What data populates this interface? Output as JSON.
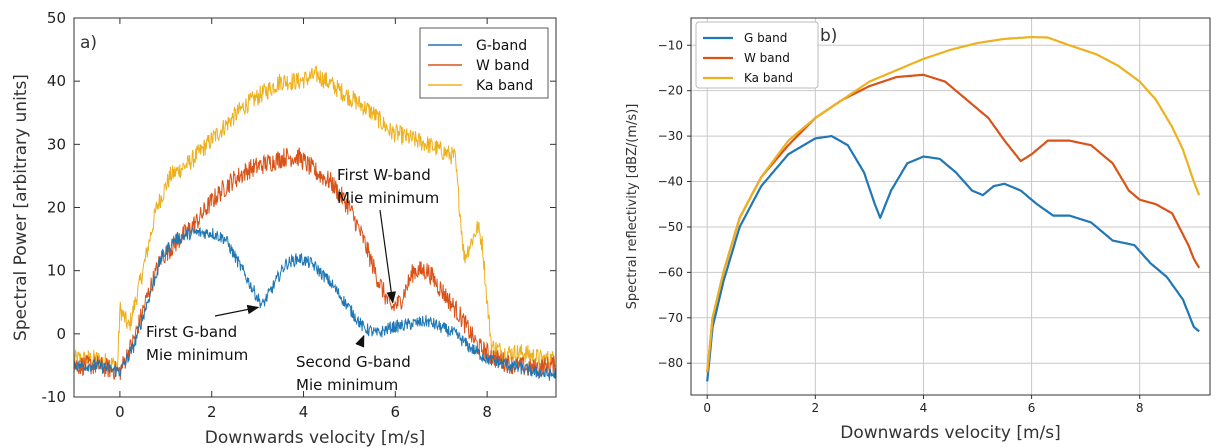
{
  "chart_data": [
    {
      "type": "line",
      "panel_label": "a)",
      "xlabel": "Downwards velocity [m/s]",
      "ylabel": "Spectral Power [arbitrary units]",
      "xlim": [
        -1,
        9.5
      ],
      "ylim": [
        -10,
        50
      ],
      "xticks": [
        "0",
        "2",
        "4",
        "6",
        "8"
      ],
      "yticks": [
        "-10",
        "0",
        "10",
        "20",
        "30",
        "40",
        "50"
      ],
      "grid": false,
      "legend_position": "top-right",
      "series": [
        {
          "name": "G-band",
          "color": "#1f77b4",
          "points": [
            [
              -1,
              -5
            ],
            [
              -0.5,
              -5
            ],
            [
              0,
              -6
            ],
            [
              0.3,
              -2
            ],
            [
              0.6,
              5
            ],
            [
              0.9,
              12
            ],
            [
              1.2,
              15
            ],
            [
              1.6,
              16
            ],
            [
              2.0,
              16
            ],
            [
              2.3,
              15
            ],
            [
              2.6,
              11
            ],
            [
              2.9,
              7
            ],
            [
              3.1,
              4.5
            ],
            [
              3.3,
              7
            ],
            [
              3.6,
              11
            ],
            [
              3.9,
              12
            ],
            [
              4.2,
              11
            ],
            [
              4.6,
              8
            ],
            [
              5.0,
              4
            ],
            [
              5.3,
              1
            ],
            [
              5.6,
              0
            ],
            [
              5.9,
              1
            ],
            [
              6.3,
              1.5
            ],
            [
              6.7,
              2
            ],
            [
              7.0,
              1
            ],
            [
              7.3,
              0
            ],
            [
              7.6,
              -2
            ],
            [
              8.0,
              -4
            ],
            [
              8.5,
              -5
            ],
            [
              9.0,
              -6
            ],
            [
              9.4,
              -6.5
            ]
          ]
        },
        {
          "name": "W band",
          "color": "#d95319",
          "points": [
            [
              -1,
              -5
            ],
            [
              -0.5,
              -5
            ],
            [
              0,
              -6
            ],
            [
              0.3,
              -1
            ],
            [
              0.6,
              6
            ],
            [
              0.9,
              12
            ],
            [
              1.3,
              15
            ],
            [
              1.7,
              18
            ],
            [
              2.0,
              21
            ],
            [
              2.4,
              24
            ],
            [
              2.8,
              26
            ],
            [
              3.2,
              27
            ],
            [
              3.6,
              28
            ],
            [
              3.9,
              28
            ],
            [
              4.2,
              26
            ],
            [
              4.6,
              24
            ],
            [
              5.0,
              20
            ],
            [
              5.3,
              15
            ],
            [
              5.6,
              9
            ],
            [
              5.9,
              4
            ],
            [
              6.1,
              5
            ],
            [
              6.4,
              10
            ],
            [
              6.7,
              10
            ],
            [
              7.0,
              7
            ],
            [
              7.4,
              3
            ],
            [
              7.8,
              -2
            ],
            [
              8.2,
              -4
            ],
            [
              8.6,
              -5
            ],
            [
              9.0,
              -5.5
            ],
            [
              9.4,
              -5
            ]
          ]
        },
        {
          "name": "Ka band",
          "color": "#edb120",
          "points": [
            [
              -1,
              -4
            ],
            [
              -0.5,
              -4
            ],
            [
              -0.05,
              -5
            ],
            [
              0,
              4
            ],
            [
              0.2,
              1
            ],
            [
              0.5,
              10
            ],
            [
              0.8,
              20
            ],
            [
              1.1,
              25
            ],
            [
              1.5,
              27
            ],
            [
              1.9,
              30
            ],
            [
              2.3,
              33
            ],
            [
              2.7,
              36
            ],
            [
              3.1,
              38
            ],
            [
              3.5,
              40
            ],
            [
              3.9,
              40
            ],
            [
              4.3,
              41
            ],
            [
              4.7,
              39
            ],
            [
              5.1,
              37
            ],
            [
              5.5,
              35
            ],
            [
              5.9,
              32
            ],
            [
              6.3,
              31
            ],
            [
              6.7,
              30
            ],
            [
              7.0,
              29
            ],
            [
              7.3,
              28
            ],
            [
              7.5,
              12
            ],
            [
              7.8,
              17
            ],
            [
              7.9,
              14
            ],
            [
              8.0,
              5
            ],
            [
              8.1,
              -2
            ],
            [
              8.4,
              -3
            ],
            [
              8.8,
              -3
            ],
            [
              9.2,
              -4
            ],
            [
              9.5,
              -4
            ]
          ]
        }
      ],
      "annotations": [
        {
          "text_lines": [
            "First G-band",
            "Mie minimum"
          ],
          "x": 3.1,
          "y": 4.5
        },
        {
          "text_lines": [
            "First W-band",
            "Mie minimum"
          ],
          "x": 5.9,
          "y": 4
        },
        {
          "text_lines": [
            "Second G-band",
            "Mie minimum"
          ],
          "x": 5.4,
          "y": 0
        }
      ]
    },
    {
      "type": "line",
      "panel_label": "b)",
      "xlabel": "Downwards velocity [m/s]",
      "ylabel": "Spectral reflectivity [dBZ/(m/s)]",
      "xlim": [
        -0.3,
        9.3
      ],
      "ylim": [
        -87,
        -4
      ],
      "xticks": [
        "0",
        "2",
        "4",
        "6",
        "8"
      ],
      "yticks": [
        "−10",
        "−20",
        "−30",
        "−40",
        "−50",
        "−60",
        "−70",
        "−80"
      ],
      "grid": true,
      "legend_position": "top-left",
      "series": [
        {
          "name": "G band",
          "color": "#1f77b4",
          "points": [
            [
              0,
              -84
            ],
            [
              0.1,
              -72
            ],
            [
              0.3,
              -62
            ],
            [
              0.6,
              -50
            ],
            [
              1.0,
              -41
            ],
            [
              1.5,
              -34
            ],
            [
              2.0,
              -30.5
            ],
            [
              2.3,
              -30
            ],
            [
              2.6,
              -32
            ],
            [
              2.9,
              -38
            ],
            [
              3.1,
              -45
            ],
            [
              3.2,
              -48
            ],
            [
              3.4,
              -42
            ],
            [
              3.7,
              -36
            ],
            [
              4.0,
              -34.5
            ],
            [
              4.3,
              -35
            ],
            [
              4.6,
              -38
            ],
            [
              4.9,
              -42
            ],
            [
              5.1,
              -43
            ],
            [
              5.3,
              -41
            ],
            [
              5.5,
              -40.5
            ],
            [
              5.8,
              -42
            ],
            [
              6.1,
              -45
            ],
            [
              6.4,
              -47.5
            ],
            [
              6.7,
              -47.5
            ],
            [
              7.1,
              -49
            ],
            [
              7.5,
              -53
            ],
            [
              7.9,
              -54
            ],
            [
              8.2,
              -58
            ],
            [
              8.5,
              -61
            ],
            [
              8.8,
              -66
            ],
            [
              9.0,
              -72
            ],
            [
              9.1,
              -73
            ]
          ]
        },
        {
          "name": "W band",
          "color": "#d95319",
          "points": [
            [
              0,
              -82
            ],
            [
              0.1,
              -70
            ],
            [
              0.3,
              -60
            ],
            [
              0.6,
              -48
            ],
            [
              1.0,
              -39
            ],
            [
              1.5,
              -32
            ],
            [
              2.0,
              -26
            ],
            [
              2.5,
              -22
            ],
            [
              3.0,
              -19
            ],
            [
              3.5,
              -17
            ],
            [
              4.0,
              -16.5
            ],
            [
              4.4,
              -18
            ],
            [
              4.8,
              -22
            ],
            [
              5.2,
              -26
            ],
            [
              5.5,
              -31
            ],
            [
              5.8,
              -35.5
            ],
            [
              6.0,
              -34
            ],
            [
              6.3,
              -31
            ],
            [
              6.7,
              -31
            ],
            [
              7.1,
              -32
            ],
            [
              7.5,
              -36
            ],
            [
              7.8,
              -42
            ],
            [
              8.0,
              -44
            ],
            [
              8.3,
              -45
            ],
            [
              8.6,
              -47
            ],
            [
              8.9,
              -54
            ],
            [
              9.0,
              -57
            ],
            [
              9.1,
              -59
            ]
          ]
        },
        {
          "name": "Ka band",
          "color": "#edb120",
          "points": [
            [
              0,
              -82
            ],
            [
              0.1,
              -70
            ],
            [
              0.3,
              -60
            ],
            [
              0.6,
              -48
            ],
            [
              1.0,
              -39
            ],
            [
              1.5,
              -31
            ],
            [
              2.0,
              -26
            ],
            [
              2.5,
              -22
            ],
            [
              3.0,
              -18
            ],
            [
              3.5,
              -15.5
            ],
            [
              4.0,
              -13
            ],
            [
              4.5,
              -11
            ],
            [
              5.0,
              -9.5
            ],
            [
              5.5,
              -8.6
            ],
            [
              6.0,
              -8.2
            ],
            [
              6.3,
              -8.3
            ],
            [
              6.7,
              -10
            ],
            [
              7.2,
              -12
            ],
            [
              7.6,
              -14.5
            ],
            [
              8.0,
              -18
            ],
            [
              8.3,
              -22
            ],
            [
              8.6,
              -28
            ],
            [
              8.8,
              -33
            ],
            [
              9.0,
              -40
            ],
            [
              9.1,
              -43
            ]
          ]
        }
      ]
    }
  ]
}
